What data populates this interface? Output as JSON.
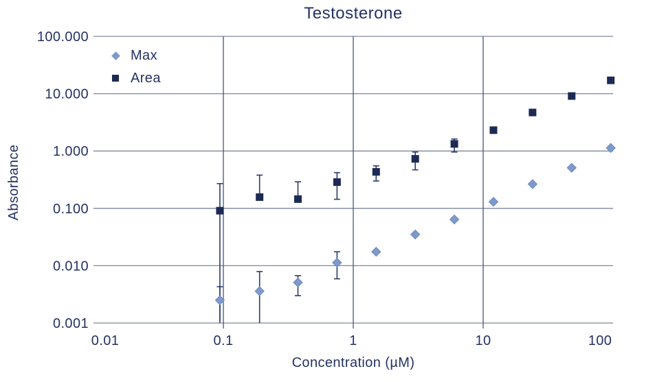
{
  "colors": {
    "text": "#243263",
    "grid_horizontal": "#7d8699",
    "grid_vertical": "#46547c",
    "error_bar": "#2c3a69",
    "square_marker": "#1c2a54",
    "diamond_marker": "#7e99cc",
    "diamond_edge": "#6b87bd",
    "background": "#ffffff"
  },
  "chart_data": {
    "type": "scatter",
    "title": "Testosterone",
    "xlabel": "Concentration (µM)",
    "ylabel": "Absorbance",
    "x_scale": "log",
    "y_scale": "log",
    "xlim": [
      0.01,
      100
    ],
    "ylim": [
      0.001,
      100
    ],
    "grid": true,
    "legend_position": "top-left",
    "x_ticks": [
      {
        "value": 0.01,
        "label": "0.01"
      },
      {
        "value": 0.1,
        "label": "0.1"
      },
      {
        "value": 1,
        "label": "1"
      },
      {
        "value": 10,
        "label": "10"
      },
      {
        "value": 100,
        "label": "100"
      }
    ],
    "y_ticks": [
      {
        "value": 100,
        "label": "100.000"
      },
      {
        "value": 10,
        "label": "10.000"
      },
      {
        "value": 1,
        "label": "1.000"
      },
      {
        "value": 0.1,
        "label": "0.100"
      },
      {
        "value": 0.01,
        "label": "0.010"
      },
      {
        "value": 0.001,
        "label": "0.001"
      }
    ],
    "series": [
      {
        "name": "Max",
        "marker": "diamond",
        "color": "#7e99cc",
        "edge_color": "#6b87bd",
        "points": [
          {
            "x": 0.094,
            "y": 0.0025,
            "err_hi": 0.0043,
            "err_lo": 0.0011,
            "lo_cap": false
          },
          {
            "x": 0.19,
            "y": 0.0036,
            "err_hi": 0.0079,
            "err_lo": 0.001,
            "lo_cap": false
          },
          {
            "x": 0.375,
            "y": 0.0051,
            "err_hi": 0.0067,
            "err_lo": 0.003,
            "lo_cap": true
          },
          {
            "x": 0.75,
            "y": 0.0113,
            "err_hi": 0.0175,
            "err_lo": 0.0059,
            "lo_cap": true
          },
          {
            "x": 1.5,
            "y": 0.0175
          },
          {
            "x": 3,
            "y": 0.035
          },
          {
            "x": 6,
            "y": 0.064
          },
          {
            "x": 12,
            "y": 0.13
          },
          {
            "x": 24,
            "y": 0.265
          },
          {
            "x": 48,
            "y": 0.51
          },
          {
            "x": 96,
            "y": 1.13
          }
        ]
      },
      {
        "name": "Area",
        "marker": "square",
        "color": "#1c2a54",
        "edge_color": "#1c2a54",
        "points": [
          {
            "x": 0.094,
            "y": 0.091,
            "err_hi": 0.27,
            "err_lo": 0.001,
            "lo_cap": false
          },
          {
            "x": 0.19,
            "y": 0.157,
            "err_hi": 0.38
          },
          {
            "x": 0.375,
            "y": 0.145,
            "err_hi": 0.29
          },
          {
            "x": 0.75,
            "y": 0.287,
            "err_hi": 0.42,
            "err_lo": 0.144,
            "lo_cap": true
          },
          {
            "x": 1.5,
            "y": 0.433,
            "err_hi": 0.55,
            "err_lo": 0.3,
            "lo_cap": true
          },
          {
            "x": 3,
            "y": 0.73,
            "err_hi": 0.96,
            "err_lo": 0.47,
            "lo_cap": true
          },
          {
            "x": 6,
            "y": 1.33,
            "err_hi": 1.62,
            "err_lo": 0.96,
            "lo_cap": true
          },
          {
            "x": 12,
            "y": 2.31
          },
          {
            "x": 24,
            "y": 4.7
          },
          {
            "x": 48,
            "y": 9.1
          },
          {
            "x": 96,
            "y": 17.1
          }
        ]
      }
    ]
  }
}
